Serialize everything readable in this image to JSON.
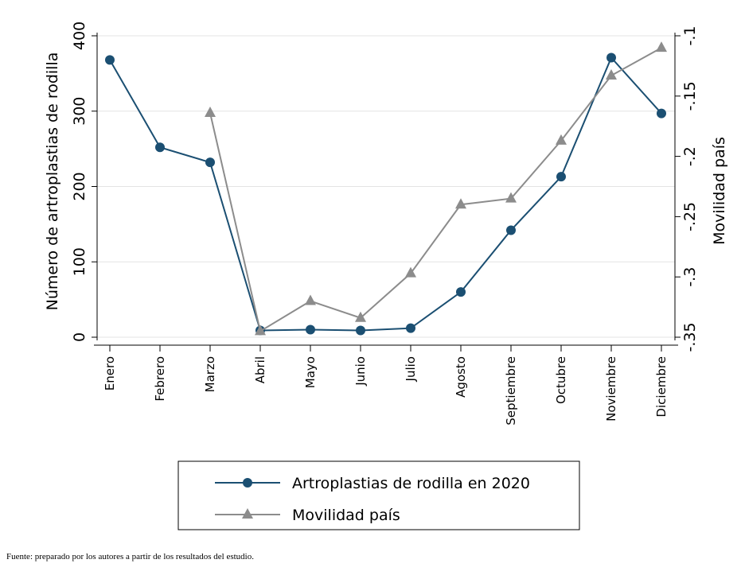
{
  "chart_data": {
    "type": "line",
    "categories": [
      "Enero",
      "Febrero",
      "Marzo",
      "Abril",
      "Mayo",
      "Junio",
      "Julio",
      "Agosto",
      "Septiembre",
      "Octubre",
      "Noviembre",
      "Diciembre"
    ],
    "y_left": {
      "label": "Número de artroplastias de rodilla",
      "range": [
        0,
        400
      ],
      "ticks": [
        0,
        100,
        200,
        300,
        400
      ],
      "tick_labels": [
        "0",
        "100",
        "200",
        "300",
        "400"
      ]
    },
    "y_right": {
      "label": "Movilidad país",
      "range": [
        -0.35,
        -0.1
      ],
      "ticks": [
        -0.35,
        -0.3,
        -0.25,
        -0.2,
        -0.15,
        -0.1
      ],
      "tick_labels": [
        "-.35",
        "-.3",
        "-.25",
        "-.2",
        "-.15",
        "-.1"
      ]
    },
    "grid": true,
    "series": [
      {
        "name": "Artroplastias de rodilla en 2020",
        "axis": "left",
        "color": "#1b4f72",
        "marker": "circle",
        "values": [
          368,
          252,
          232,
          9,
          10,
          9,
          12,
          60,
          142,
          213,
          371,
          297
        ]
      },
      {
        "name": "Movilidad país",
        "axis": "right",
        "color": "#8c8c8c",
        "marker": "triangle",
        "values": [
          null,
          null,
          -0.164,
          -0.345,
          -0.32,
          -0.334,
          -0.297,
          -0.24,
          -0.235,
          -0.187,
          -0.133,
          -0.11
        ]
      }
    ],
    "legend_position": "bottom"
  },
  "footnote": "Fuente: preparado por los autores a partir de los resultados del estudio."
}
